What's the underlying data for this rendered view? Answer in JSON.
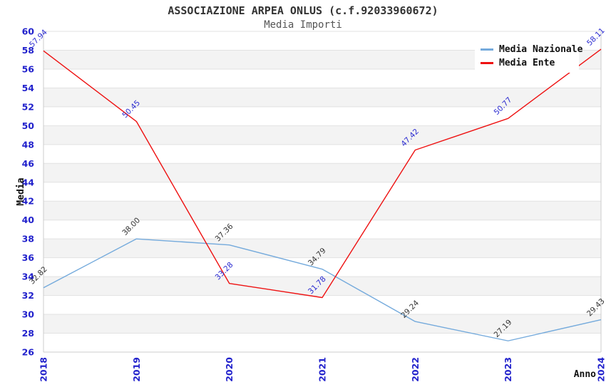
{
  "chart_data": {
    "type": "line",
    "title": "ASSOCIAZIONE ARPEA ONLUS (c.f.92033960672)",
    "subtitle": "Media Importi",
    "xlabel": "Anno",
    "ylabel": "Media",
    "categories": [
      "2018",
      "2019",
      "2020",
      "2021",
      "2022",
      "2023",
      "2024"
    ],
    "ylim": [
      26,
      60
    ],
    "ytick_step": 2,
    "grid": "horizontal-gridlines-with-alternating-bands",
    "legend_position": "top-right",
    "colors": {
      "tick_label": "#2222cc",
      "gridline": "#e2e2e2",
      "band_gray": "#f3f3f3",
      "plot_border": "#cccccc",
      "title_text": "#333333",
      "subtitle_text": "#555555"
    },
    "series": [
      {
        "name": "Media Nazionale",
        "color": "#74aadc",
        "label_color": "#333333",
        "values": [
          32.82,
          38.0,
          37.36,
          34.79,
          29.24,
          27.19,
          29.43
        ],
        "labels": [
          "32.82",
          "38.00",
          "37.36",
          "34.79",
          "29.24",
          "27.19",
          "29.43"
        ]
      },
      {
        "name": "Media Ente",
        "color": "#ee1111",
        "label_color": "#2a2ad0",
        "values": [
          57.94,
          50.45,
          33.28,
          31.78,
          47.42,
          50.77,
          58.11
        ],
        "labels": [
          "57.94",
          "50.45",
          "33.28",
          "31.78",
          "47.42",
          "50.77",
          "58.11"
        ]
      }
    ]
  }
}
